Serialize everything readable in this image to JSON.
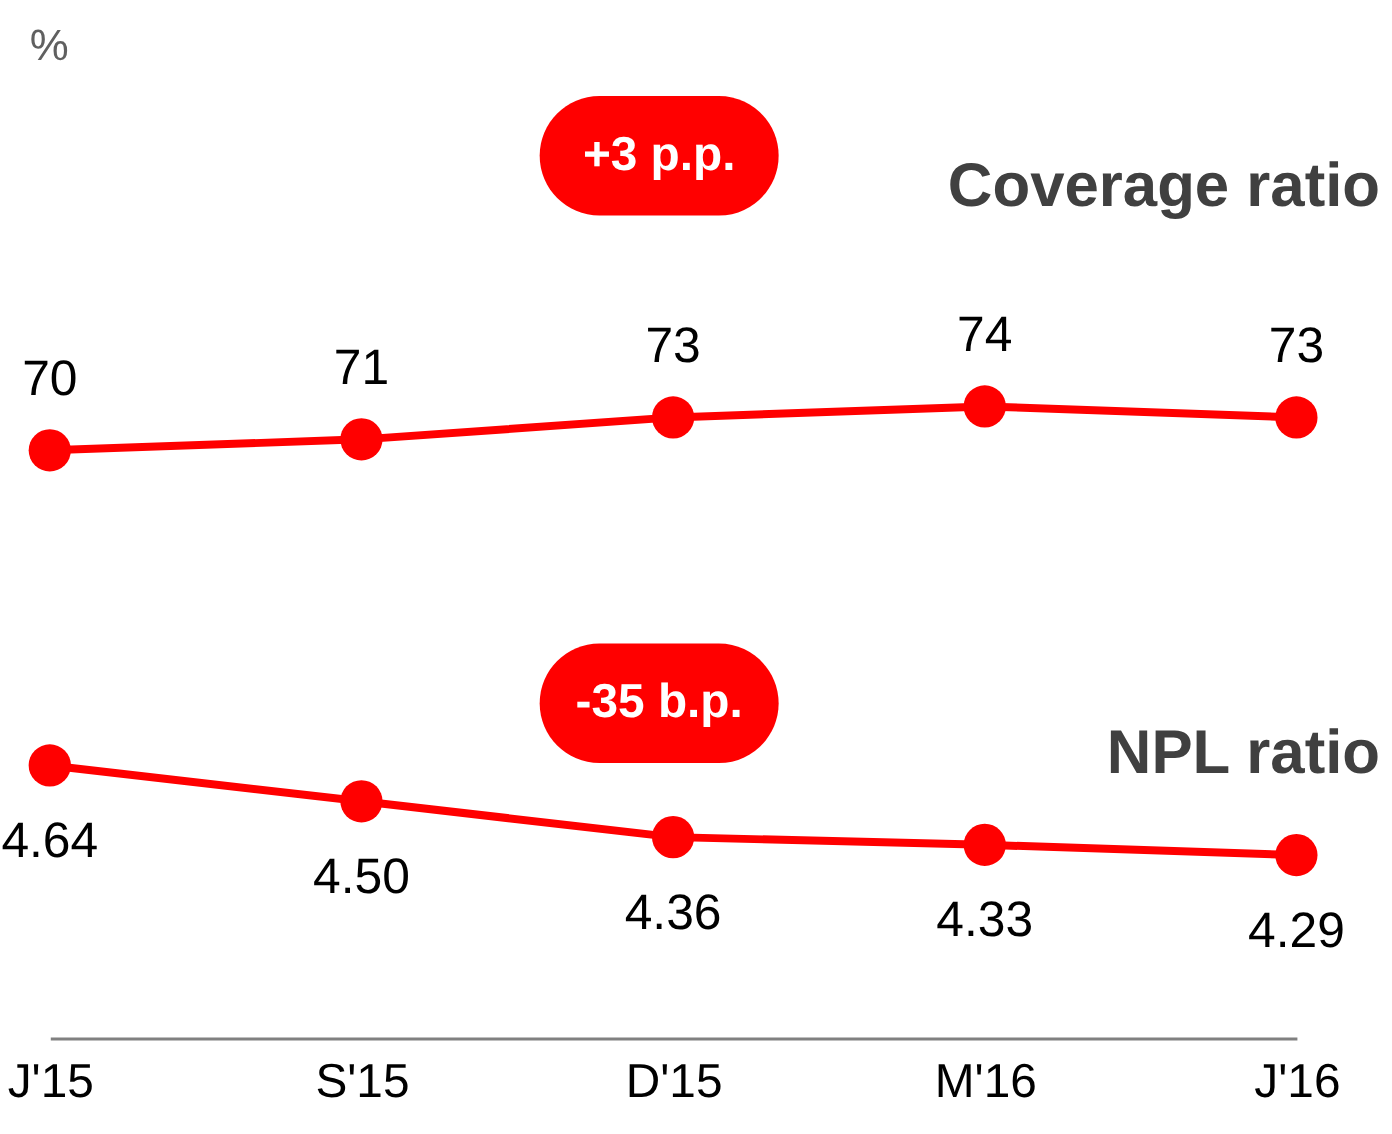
{
  "chart_data": [
    {
      "type": "line",
      "categories": [
        null,
        null,
        null,
        null,
        null
      ],
      "series": [
        {
          "name": "Coverage ratio",
          "color": "#ff0000",
          "values": [
            70,
            71,
            73,
            74,
            73
          ]
        }
      ],
      "data_labels": true,
      "marker": "circle",
      "tick_labels": false,
      "annotations": [
        "%",
        "+3 p.p."
      ]
    },
    {
      "type": "line",
      "categories": [
        "J'15",
        "S'15",
        "D'15",
        "M'16",
        "J'16"
      ],
      "series": [
        {
          "name": "NPL ratio",
          "color": "#ff0000",
          "values": [
            4.64,
            4.5,
            4.36,
            4.33,
            4.29
          ],
          "value_labels": [
            "4.64",
            "4.50",
            "4.36",
            "4.33",
            "4.29"
          ]
        }
      ],
      "marker": "circle",
      "tick_labels": "x",
      "annotations": [
        "-35 b.p."
      ]
    }
  ]
}
